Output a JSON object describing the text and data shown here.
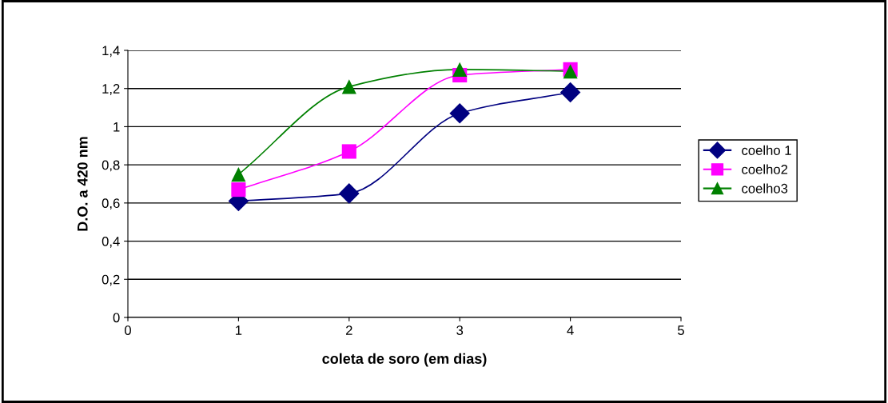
{
  "chart_data": {
    "type": "line",
    "xlabel": "coleta de soro (em dias)",
    "ylabel": "D.O. a 420 nm",
    "x": [
      1,
      2,
      3,
      4
    ],
    "series": [
      {
        "name": "coelho 1",
        "color": "#000080",
        "marker": "diamond",
        "values": [
          0.61,
          0.65,
          1.07,
          1.18
        ]
      },
      {
        "name": "coelho2",
        "color": "#ff00ff",
        "marker": "square",
        "values": [
          0.67,
          0.87,
          1.27,
          1.3
        ]
      },
      {
        "name": "coelho3",
        "color": "#008000",
        "marker": "triangle",
        "values": [
          0.75,
          1.21,
          1.3,
          1.29
        ]
      }
    ],
    "xlim": [
      0,
      5
    ],
    "xticks": [
      0,
      1,
      2,
      3,
      4,
      5
    ],
    "ylim": [
      0,
      1.4
    ],
    "yticks": [
      0,
      {
        "value": 0.2,
        "label": "0,2"
      },
      {
        "value": 0.4,
        "label": "0,4"
      },
      {
        "value": 0.6,
        "label": "0,6"
      },
      {
        "value": 0.8,
        "label": "0,8"
      },
      1,
      {
        "value": 1.2,
        "label": "1,2"
      },
      {
        "value": 1.4,
        "label": "1,4"
      }
    ],
    "grid": "y",
    "legend": "right",
    "line_style": "solid"
  }
}
